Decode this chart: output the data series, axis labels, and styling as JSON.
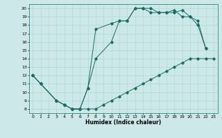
{
  "xlabel": "Humidex (Indice chaleur)",
  "bg_color": "#cce8e8",
  "line_color": "#1a6b60",
  "grid_color": "#aad4d4",
  "xlim": [
    -0.5,
    23.5
  ],
  "ylim": [
    7.5,
    20.5
  ],
  "xticks": [
    0,
    1,
    2,
    3,
    4,
    5,
    6,
    7,
    8,
    9,
    10,
    11,
    12,
    13,
    14,
    15,
    16,
    17,
    18,
    19,
    20,
    21,
    22,
    23
  ],
  "yticks": [
    8,
    9,
    10,
    11,
    12,
    13,
    14,
    15,
    16,
    17,
    18,
    19,
    20
  ],
  "line1_x": [
    0,
    1,
    3,
    4,
    5,
    6,
    7,
    8,
    9,
    10,
    11,
    12,
    13,
    14,
    15,
    16,
    17,
    18,
    19,
    20,
    21,
    22,
    23
  ],
  "line1_y": [
    12,
    11,
    9,
    8.5,
    8,
    8,
    8,
    8,
    8.5,
    9,
    9.5,
    10,
    10.5,
    11,
    11.5,
    12,
    12.5,
    13,
    13.5,
    14,
    14,
    14,
    14
  ],
  "line2_x": [
    0,
    1,
    3,
    4,
    5,
    6,
    7,
    8,
    10,
    11,
    12,
    13,
    14,
    15,
    16,
    17,
    18,
    19,
    20,
    21,
    22
  ],
  "line2_y": [
    12,
    11,
    9,
    8.5,
    8,
    8,
    10.5,
    14,
    16,
    18.5,
    18.5,
    20,
    20,
    20,
    19.5,
    19.5,
    19.5,
    19.8,
    19,
    18,
    15.2
  ],
  "line3_x": [
    0,
    1,
    3,
    4,
    5,
    6,
    7,
    8,
    10,
    11,
    12,
    13,
    14,
    15,
    16,
    17,
    18,
    19,
    20,
    21,
    22
  ],
  "line3_y": [
    12,
    11,
    9,
    8.5,
    8,
    8,
    10.5,
    17.5,
    18.2,
    18.5,
    18.5,
    20,
    20,
    19.5,
    19.5,
    19.5,
    19.8,
    19,
    19,
    18.5,
    15.2
  ]
}
